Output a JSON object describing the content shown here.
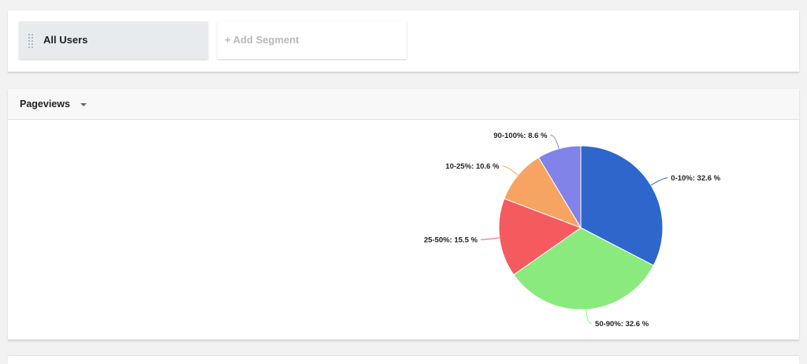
{
  "segments": {
    "active_label": "All Users",
    "add_label": "+ Add Segment"
  },
  "metric": {
    "label": "Pageviews"
  },
  "chart_data": {
    "type": "pie",
    "title": "",
    "slices": [
      {
        "label": "0-10%: 32.6 %",
        "category": "0-10%",
        "value": 32.6,
        "color": "#2f66cc"
      },
      {
        "label": "50-90%: 32.6 %",
        "category": "50-90%",
        "value": 32.6,
        "color": "#8aea7e"
      },
      {
        "label": "25-50%: 15.5 %",
        "category": "25-50%",
        "value": 15.5,
        "color": "#f55a5f"
      },
      {
        "label": "10-25%: 10.6 %",
        "category": "10-25%",
        "value": 10.6,
        "color": "#f7a462"
      },
      {
        "label": "90-100%: 8.6 %",
        "category": "90-100%",
        "value": 8.6,
        "color": "#8183e9"
      }
    ]
  }
}
